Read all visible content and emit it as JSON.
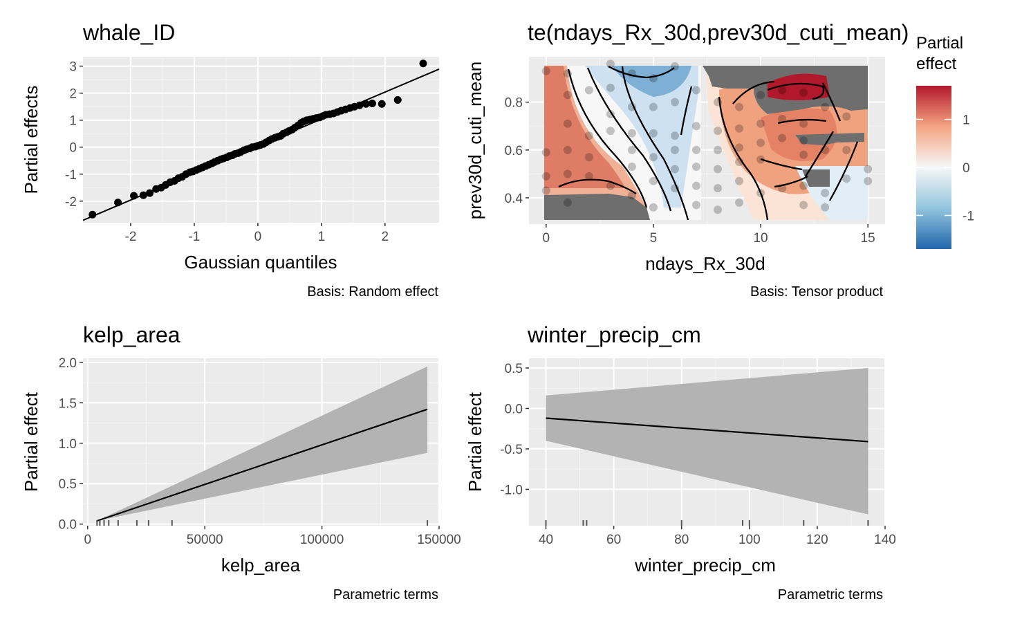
{
  "colors": {
    "panel_bg": "#EBEBEB",
    "grid": "#FFFFFF",
    "band": "#B3B3B3",
    "na": "#6E6E6E",
    "diverging_low": "#2166AC",
    "diverging_mid": "#F7F7F7",
    "diverging_high": "#B2182B"
  },
  "chart_data": [
    {
      "id": "whale_ID",
      "type": "scatter",
      "title": "whale_ID",
      "xlabel": "Gaussian quantiles",
      "ylabel": "Partial effects",
      "caption": "Basis: Random effect",
      "xlim": [
        -2.75,
        2.85
      ],
      "ylim": [
        -2.8,
        3.35
      ],
      "xticks": [
        -2,
        -1,
        0,
        1,
        2
      ],
      "xtick_labels": [
        "-2",
        "-1",
        "0",
        "1",
        "2"
      ],
      "yticks": [
        -2,
        -1,
        0,
        1,
        2,
        3
      ],
      "ytick_labels": [
        "-2",
        "-1",
        "0",
        "1",
        "2",
        "3"
      ],
      "grid": true,
      "reference_line": {
        "intercept": 0.04,
        "slope": 1.0
      },
      "points_x": [
        -2.6,
        -2.2,
        -1.95,
        -1.8,
        -1.7,
        -1.6,
        -1.52,
        -1.45,
        -1.38,
        -1.31,
        -1.25,
        -1.19,
        -1.13,
        -1.07,
        -1.02,
        -0.97,
        -0.92,
        -0.87,
        -0.82,
        -0.77,
        -0.72,
        -0.68,
        -0.63,
        -0.58,
        -0.54,
        -0.49,
        -0.45,
        -0.4,
        -0.36,
        -0.31,
        -0.27,
        -0.22,
        -0.18,
        -0.13,
        -0.09,
        -0.04,
        0.0,
        0.04,
        0.09,
        0.13,
        0.18,
        0.22,
        0.27,
        0.31,
        0.36,
        0.4,
        0.45,
        0.49,
        0.54,
        0.58,
        0.63,
        0.68,
        0.72,
        0.77,
        0.82,
        0.87,
        0.92,
        0.97,
        1.02,
        1.07,
        1.13,
        1.19,
        1.25,
        1.31,
        1.38,
        1.45,
        1.52,
        1.6,
        1.7,
        1.8,
        1.95,
        2.2,
        2.6
      ],
      "points_y": [
        -2.5,
        -2.05,
        -1.8,
        -1.78,
        -1.7,
        -1.55,
        -1.5,
        -1.4,
        -1.3,
        -1.25,
        -1.15,
        -1.1,
        -1.0,
        -0.93,
        -0.9,
        -0.85,
        -0.8,
        -0.75,
        -0.7,
        -0.65,
        -0.6,
        -0.55,
        -0.5,
        -0.45,
        -0.42,
        -0.38,
        -0.33,
        -0.3,
        -0.25,
        -0.22,
        -0.18,
        -0.12,
        -0.08,
        -0.05,
        0.0,
        0.02,
        0.05,
        0.08,
        0.12,
        0.18,
        0.25,
        0.3,
        0.35,
        0.38,
        0.42,
        0.5,
        0.55,
        0.6,
        0.65,
        0.72,
        0.8,
        0.9,
        0.95,
        1.0,
        1.02,
        1.05,
        1.08,
        1.1,
        1.15,
        1.2,
        1.22,
        1.25,
        1.3,
        1.35,
        1.4,
        1.45,
        1.5,
        1.55,
        1.6,
        1.62,
        1.6,
        1.75,
        3.1
      ]
    },
    {
      "id": "tensor",
      "type": "heatmap",
      "title": "te(ndays_Rx_30d,prev30d_cuti_mean)",
      "xlabel": "ndays_Rx_30d",
      "ylabel": "prev30d_cuti_mean",
      "caption": "Basis: Tensor product",
      "xlim": [
        -0.8,
        15.8
      ],
      "ylim": [
        0.29,
        0.99
      ],
      "xticks": [
        0,
        5,
        10,
        15
      ],
      "xtick_labels": [
        "0",
        "5",
        "10",
        "15"
      ],
      "yticks": [
        0.4,
        0.6,
        0.8
      ],
      "ytick_labels": [
        "0.4",
        "0.6",
        "0.8"
      ],
      "grid": true,
      "legend_title": "Partial effect",
      "legend_placement": "right",
      "legend_ticks": [
        1,
        0,
        -1
      ],
      "legend_tick_labels": [
        "1",
        "0",
        "-1"
      ],
      "legend_range": [
        -1.7,
        1.7
      ],
      "surface_x": [
        0,
        7.5,
        12,
        15
      ],
      "surface_y": [
        0.32,
        0.96
      ],
      "points": [
        [
          0,
          0.93
        ],
        [
          0,
          0.59
        ],
        [
          0,
          0.49
        ],
        [
          0,
          0.43
        ],
        [
          1,
          0.92
        ],
        [
          1,
          0.83
        ],
        [
          1,
          0.71
        ],
        [
          1,
          0.6
        ],
        [
          1,
          0.5
        ],
        [
          1,
          0.38
        ],
        [
          2,
          0.85
        ],
        [
          2,
          0.66
        ],
        [
          2,
          0.57
        ],
        [
          2,
          0.49
        ],
        [
          3,
          0.96
        ],
        [
          3,
          0.86
        ],
        [
          3,
          0.75
        ],
        [
          3,
          0.68
        ],
        [
          3,
          0.45
        ],
        [
          4,
          0.92
        ],
        [
          4,
          0.78
        ],
        [
          4,
          0.67
        ],
        [
          4,
          0.6
        ],
        [
          4,
          0.53
        ],
        [
          4,
          0.41
        ],
        [
          5,
          0.9
        ],
        [
          5,
          0.78
        ],
        [
          5,
          0.67
        ],
        [
          5,
          0.57
        ],
        [
          5,
          0.47
        ],
        [
          5,
          0.36
        ],
        [
          6,
          0.95
        ],
        [
          6,
          0.8
        ],
        [
          6,
          0.66
        ],
        [
          6,
          0.6
        ],
        [
          6,
          0.52
        ],
        [
          6,
          0.44
        ],
        [
          7,
          0.85
        ],
        [
          7,
          0.7
        ],
        [
          7,
          0.6
        ],
        [
          7,
          0.53
        ],
        [
          7,
          0.45
        ],
        [
          7,
          0.37
        ],
        [
          8,
          0.8
        ],
        [
          8,
          0.68
        ],
        [
          8,
          0.6
        ],
        [
          8,
          0.52
        ],
        [
          8,
          0.44
        ],
        [
          8,
          0.35
        ],
        [
          9,
          0.78
        ],
        [
          9,
          0.69
        ],
        [
          9,
          0.61
        ],
        [
          9,
          0.55
        ],
        [
          9,
          0.47
        ],
        [
          9,
          0.38
        ],
        [
          10,
          0.83
        ],
        [
          10,
          0.71
        ],
        [
          10,
          0.63
        ],
        [
          10,
          0.56
        ],
        [
          10,
          0.42
        ],
        [
          11,
          0.85
        ],
        [
          11,
          0.73
        ],
        [
          11,
          0.65
        ],
        [
          11,
          0.44
        ],
        [
          12,
          0.84
        ],
        [
          12,
          0.71
        ],
        [
          12,
          0.64
        ],
        [
          12,
          0.58
        ],
        [
          12,
          0.45
        ],
        [
          12,
          0.37
        ],
        [
          13,
          0.78
        ],
        [
          13,
          0.6
        ],
        [
          13,
          0.42
        ],
        [
          13,
          0.36
        ],
        [
          14,
          0.74
        ],
        [
          14,
          0.6
        ],
        [
          14,
          0.48
        ],
        [
          15,
          0.52
        ],
        [
          15,
          0.47
        ]
      ]
    },
    {
      "id": "kelp_area",
      "type": "line",
      "title": "kelp_area",
      "xlabel": "kelp_area",
      "ylabel": "Partial effect",
      "caption": "Parametric terms",
      "xlim": [
        -2000,
        150000
      ],
      "ylim": [
        -0.02,
        2.05
      ],
      "xticks": [
        0,
        50000,
        100000,
        150000
      ],
      "xtick_labels": [
        "0",
        "50000",
        "100000",
        "150000"
      ],
      "yticks": [
        0.0,
        0.5,
        1.0,
        1.5,
        2.0
      ],
      "ytick_labels": [
        "0.0",
        "0.5",
        "1.0",
        "1.5",
        "2.0"
      ],
      "grid": true,
      "x": [
        4000,
        145000
      ],
      "y": [
        0.04,
        1.42
      ],
      "lower": [
        0.04,
        0.88
      ],
      "upper": [
        0.04,
        1.95
      ],
      "rug": [
        4000,
        5200,
        7000,
        9000,
        13000,
        21000,
        26000,
        36000,
        145000
      ]
    },
    {
      "id": "winter_precip_cm",
      "type": "line",
      "title": "winter_precip_cm",
      "xlabel": "winter_precip_cm",
      "ylabel": "Partial effect",
      "caption": "Parametric terms",
      "xlim": [
        35,
        140
      ],
      "ylim": [
        -1.45,
        0.62
      ],
      "xticks": [
        40,
        60,
        80,
        100,
        120,
        140
      ],
      "xtick_labels": [
        "40",
        "60",
        "80",
        "100",
        "120",
        "140"
      ],
      "yticks": [
        -1.0,
        -0.5,
        0.0,
        0.5
      ],
      "ytick_labels": [
        "-1.0",
        "-0.5",
        "0.0",
        "0.5"
      ],
      "grid": true,
      "x": [
        40,
        135
      ],
      "y": [
        -0.12,
        -0.41
      ],
      "lower": [
        -0.4,
        -1.31
      ],
      "upper": [
        0.16,
        0.5
      ],
      "rug": [
        40,
        51,
        52,
        80,
        98,
        100,
        116,
        135
      ]
    }
  ]
}
